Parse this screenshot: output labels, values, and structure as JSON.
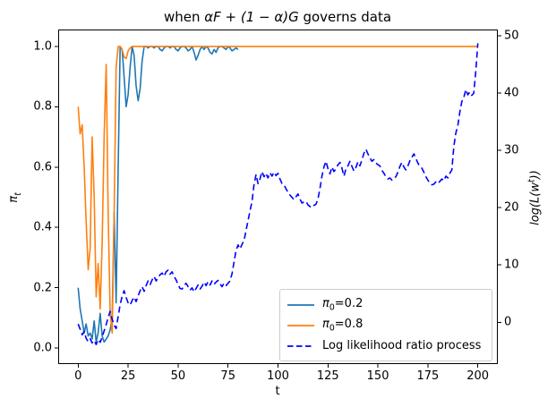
{
  "chart_data": {
    "type": "line",
    "title_parts": {
      "prefix": "when ",
      "math": "αF + (1 − α)G",
      "suffix": " governs data"
    },
    "x_axis": {
      "label": "t",
      "lim": [
        -10,
        210
      ],
      "tick_values": [
        0,
        25,
        50,
        75,
        100,
        125,
        150,
        175,
        200
      ],
      "tick_labels": [
        "0",
        "25",
        "50",
        "75",
        "100",
        "125",
        "150",
        "175",
        "200"
      ]
    },
    "y_axis_left": {
      "label_base": "π",
      "label_sub": "t",
      "lim": [
        -0.053,
        1.056
      ],
      "tick_values": [
        0.0,
        0.2,
        0.4,
        0.6,
        0.8,
        1.0
      ],
      "tick_labels": [
        "0.0",
        "0.2",
        "0.4",
        "0.6",
        "0.8",
        "1.0"
      ]
    },
    "y_axis_right": {
      "label_pre": "log(L(w",
      "label_sup": "t",
      "label_post": "))",
      "lim": [
        -7.3,
        51.1
      ],
      "tick_values": [
        0,
        10,
        20,
        30,
        40,
        50
      ],
      "tick_labels": [
        "0",
        "10",
        "20",
        "30",
        "40",
        "50"
      ]
    },
    "grid": false,
    "legend_position": "lower right",
    "series": [
      {
        "name": "pi0-0.2",
        "label_base": "π",
        "label_sub": "0",
        "label_rest": "=0.2",
        "color": "#1f77b4",
        "line_style": "solid",
        "axis": "left",
        "t_start": 0,
        "t_step": 1,
        "values": [
          0.2,
          0.13,
          0.09,
          0.05,
          0.08,
          0.04,
          0.05,
          0.03,
          0.09,
          0.02,
          0.05,
          0.115,
          0.04,
          0.02,
          0.03,
          0.04,
          0.06,
          0.1,
          0.45,
          0.15,
          0.6,
          1.0,
          0.99,
          0.9,
          0.8,
          0.84,
          0.93,
          1.0,
          0.97,
          0.87,
          0.82,
          0.86,
          0.95,
          1.0,
          1.0,
          0.995,
          1.0,
          1.0,
          0.995,
          1.0,
          1.0,
          0.99,
          0.985,
          0.995,
          1.0,
          1.0,
          0.995,
          1.0,
          1.0,
          0.99,
          0.985,
          0.995,
          1.0,
          1.0,
          0.995,
          0.985,
          0.99,
          1.0,
          0.98,
          0.955,
          0.97,
          0.99,
          1.0,
          0.99,
          1.0,
          0.995,
          0.98,
          0.975,
          0.99,
          0.98,
          0.995,
          1.0,
          1.0,
          0.995,
          0.99,
          1.0,
          0.995,
          0.985,
          0.99,
          0.995,
          0.99
        ]
      },
      {
        "name": "pi0-0.8",
        "label_base": "π",
        "label_sub": "0",
        "label_rest": "=0.8",
        "color": "#ff7f0e",
        "line_style": "solid",
        "axis": "left",
        "t_start": 0,
        "t_step": 1,
        "values": [
          0.8,
          0.71,
          0.74,
          0.6,
          0.42,
          0.26,
          0.33,
          0.7,
          0.5,
          0.17,
          0.28,
          0.13,
          0.35,
          0.7,
          0.94,
          0.45,
          0.12,
          0.05,
          0.45,
          0.93,
          1.0,
          1.0,
          0.99,
          0.965,
          0.96,
          0.985,
          0.995,
          1.0,
          1.0,
          1.0,
          1.0
        ],
        "constant_tail": {
          "to_t": 200,
          "value": 1.0
        }
      },
      {
        "name": "log-likelihood-ratio",
        "label_base": "",
        "label_sub": "",
        "label_rest": "Log likelihood ratio process",
        "color": "#0000ff",
        "line_style": "dashed",
        "axis": "right",
        "t_start": 0,
        "t_step": 1,
        "values": [
          -0.3,
          -1.2,
          -2.2,
          -1.6,
          -2.8,
          -3.4,
          -2.9,
          -3.6,
          -3.2,
          -3.9,
          -3.0,
          -3.5,
          -2.6,
          -1.5,
          -0.4,
          0.8,
          1.9,
          0.5,
          -0.5,
          -1.1,
          1.0,
          3.1,
          4.5,
          5.5,
          4.3,
          3.4,
          3.0,
          3.8,
          4.4,
          3.6,
          4.6,
          5.5,
          6.2,
          5.4,
          6.4,
          7.2,
          6.6,
          7.4,
          8.0,
          7.2,
          7.8,
          8.3,
          8.6,
          8.0,
          8.8,
          9.1,
          8.4,
          8.8,
          8.0,
          7.4,
          6.6,
          5.9,
          5.8,
          6.4,
          6.8,
          6.2,
          5.6,
          6.0,
          5.3,
          5.9,
          6.5,
          5.8,
          6.3,
          7.0,
          6.4,
          7.1,
          6.5,
          7.2,
          6.6,
          7.0,
          7.3,
          6.7,
          6.2,
          6.8,
          6.4,
          6.8,
          7.2,
          8.5,
          10.5,
          12.5,
          13.5,
          12.8,
          13.6,
          14.3,
          16.0,
          17.7,
          19.5,
          21.1,
          24.0,
          25.8,
          24.2,
          25.0,
          26.3,
          25.4,
          26.0,
          25.2,
          26.1,
          25.5,
          26.2,
          25.6,
          26.0,
          25.0,
          24.2,
          24.0,
          23.3,
          22.7,
          22.2,
          21.8,
          21.4,
          21.9,
          22.4,
          21.5,
          20.8,
          21.0,
          21.1,
          20.5,
          20.2,
          20.0,
          20.4,
          20.6,
          21.5,
          23.4,
          25.5,
          27.1,
          28.1,
          26.8,
          25.9,
          27.1,
          26.3,
          26.8,
          27.5,
          27.9,
          26.9,
          25.5,
          26.8,
          27.3,
          28.1,
          27.2,
          26.4,
          27.0,
          28.0,
          27.3,
          28.3,
          29.5,
          30.2,
          29.4,
          28.7,
          28.1,
          28.4,
          27.8,
          27.5,
          27.3,
          26.5,
          26.0,
          25.4,
          25.0,
          25.2,
          24.8,
          25.1,
          25.4,
          26.2,
          27.2,
          27.9,
          27.1,
          26.6,
          27.3,
          28.2,
          28.8,
          29.4,
          28.6,
          27.8,
          27.2,
          26.9,
          26.2,
          25.4,
          24.8,
          24.3,
          24.0,
          24.1,
          24.5,
          24.2,
          24.6,
          25.0,
          24.7,
          25.5,
          25.2,
          26.0,
          26.6,
          30.7,
          33.0,
          34.4,
          36.7,
          38.5,
          39.3,
          40.6,
          39.7,
          40.2,
          39.6,
          40.0,
          44.0,
          48.7
        ]
      }
    ]
  }
}
